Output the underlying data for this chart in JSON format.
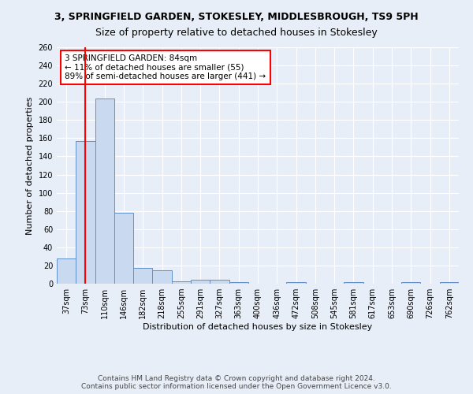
{
  "title": "3, SPRINGFIELD GARDEN, STOKESLEY, MIDDLESBROUGH, TS9 5PH",
  "subtitle": "Size of property relative to detached houses in Stokesley",
  "xlabel": "Distribution of detached houses by size in Stokesley",
  "ylabel": "Number of detached properties",
  "bin_labels": [
    "37sqm",
    "73sqm",
    "110sqm",
    "146sqm",
    "182sqm",
    "218sqm",
    "255sqm",
    "291sqm",
    "327sqm",
    "363sqm",
    "400sqm",
    "436sqm",
    "472sqm",
    "508sqm",
    "545sqm",
    "581sqm",
    "617sqm",
    "653sqm",
    "690sqm",
    "726sqm",
    "762sqm"
  ],
  "bar_values": [
    28,
    157,
    204,
    78,
    17,
    15,
    3,
    4,
    4,
    2,
    0,
    0,
    2,
    0,
    0,
    2,
    0,
    0,
    2,
    0,
    2
  ],
  "bar_color": "#c9d9f0",
  "bar_edge_color": "#6090cc",
  "red_line_x": 1,
  "annotation_text": "3 SPRINGFIELD GARDEN: 84sqm\n← 11% of detached houses are smaller (55)\n89% of semi-detached houses are larger (441) →",
  "annotation_box_color": "white",
  "annotation_box_edge": "red",
  "footer_line1": "Contains HM Land Registry data © Crown copyright and database right 2024.",
  "footer_line2": "Contains public sector information licensed under the Open Government Licence v3.0.",
  "ylim": [
    0,
    260
  ],
  "yticks": [
    0,
    20,
    40,
    60,
    80,
    100,
    120,
    140,
    160,
    180,
    200,
    220,
    240,
    260
  ],
  "background_color": "#e8eef8",
  "grid_color": "white",
  "title_fontsize": 9,
  "subtitle_fontsize": 9,
  "ylabel_fontsize": 8,
  "xlabel_fontsize": 8,
  "tick_fontsize": 7,
  "footer_fontsize": 6.5,
  "annotation_fontsize": 7.5
}
